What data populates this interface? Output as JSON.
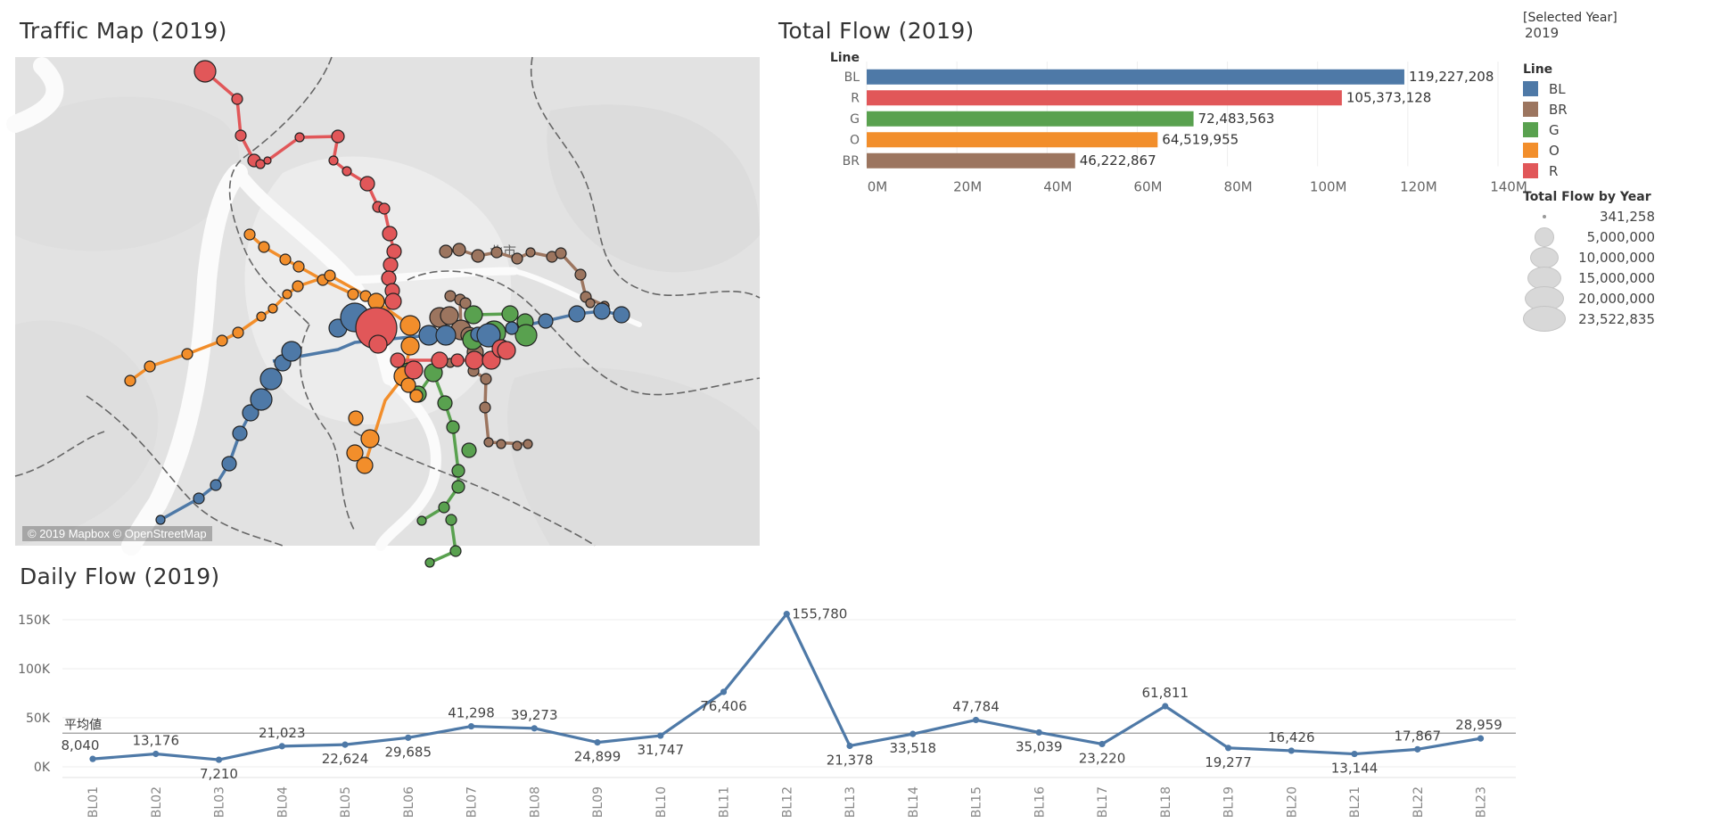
{
  "titles": {
    "map": "Traffic Map (2019)",
    "bar": "Total Flow (2019)",
    "daily": "Daily Flow (2019)"
  },
  "map": {
    "attribution": "© 2019 Mapbox © OpenStreetMap",
    "district_label": "北市",
    "background": "#e4e4e4",
    "line_colors": {
      "BL": "#4e79a7",
      "BR": "#9c755f",
      "G": "#59a14f",
      "O": "#f28e2b",
      "R": "#e15759"
    }
  },
  "selected_year": {
    "label": "[Selected Year]",
    "value": "2019"
  },
  "legend": {
    "line_title": "Line",
    "lines": [
      {
        "code": "BL",
        "color": "#4e79a7"
      },
      {
        "code": "BR",
        "color": "#9c755f"
      },
      {
        "code": "G",
        "color": "#59a14f"
      },
      {
        "code": "O",
        "color": "#f28e2b"
      },
      {
        "code": "R",
        "color": "#e15759"
      }
    ],
    "size_title": "Total Flow by Year",
    "sizes": [
      "341,258",
      "5,000,000",
      "10,000,000",
      "15,000,000",
      "20,000,000",
      "23,522,835"
    ]
  },
  "chart_data": [
    {
      "type": "bar",
      "orientation": "horizontal",
      "title": "Total Flow (2019)",
      "category_header": "Line",
      "categories": [
        "BL",
        "R",
        "G",
        "O",
        "BR"
      ],
      "values": [
        119227208,
        105373128,
        72483563,
        64519955,
        46222867
      ],
      "value_labels": [
        "119,227,208",
        "105,373,128",
        "72,483,563",
        "64,519,955",
        "46,222,867"
      ],
      "colors": [
        "#4e79a7",
        "#e15759",
        "#59a14f",
        "#f28e2b",
        "#9c755f"
      ],
      "xlim": [
        0,
        140000000
      ],
      "ticks": [
        0,
        20000000,
        40000000,
        60000000,
        80000000,
        100000000,
        120000000,
        140000000
      ],
      "tick_labels": [
        "0M",
        "20M",
        "40M",
        "60M",
        "80M",
        "100M",
        "120M",
        "140M"
      ],
      "grid": true
    },
    {
      "type": "line",
      "title": "Daily Flow (2019)",
      "categories": [
        "BL01",
        "BL02",
        "BL03",
        "BL04",
        "BL05",
        "BL06",
        "BL07",
        "BL08",
        "BL09",
        "BL10",
        "BL11",
        "BL12",
        "BL13",
        "BL14",
        "BL15",
        "BL16",
        "BL17",
        "BL18",
        "BL19",
        "BL20",
        "BL21",
        "BL22",
        "BL23"
      ],
      "series": [
        {
          "values": [
            8040,
            13176,
            7210,
            21023,
            22624,
            29685,
            41298,
            39273,
            24899,
            31747,
            76406,
            155780,
            21378,
            33518,
            47784,
            35039,
            23220,
            61811,
            19277,
            16426,
            13144,
            17867,
            28959
          ],
          "labels": [
            "8,040",
            "13,176",
            "7,210",
            "21,023",
            "22,624",
            "29,685",
            "41,298",
            "39,273",
            "24,899",
            "31,747",
            "76,406",
            "155,780",
            "21,378",
            "33,518",
            "47,784",
            "35,039",
            "23,220",
            "61,811",
            "19,277",
            "16,426",
            "13,144",
            "17,867",
            "28,959"
          ],
          "label_pos": [
            "above",
            "above",
            "below",
            "above",
            "below",
            "below",
            "above",
            "above",
            "below",
            "below",
            "below",
            "right",
            "below",
            "below",
            "above",
            "below",
            "below",
            "above",
            "below",
            "above",
            "below",
            "above",
            "above"
          ],
          "color": "#4e79a7"
        }
      ],
      "reference_line": {
        "label": "平均値",
        "value": 34300
      },
      "ylim": [
        0,
        160000
      ],
      "yticks": [
        0,
        50000,
        100000,
        150000
      ],
      "ytick_labels": [
        "0K",
        "50K",
        "100K",
        "150K"
      ],
      "grid": true
    }
  ]
}
